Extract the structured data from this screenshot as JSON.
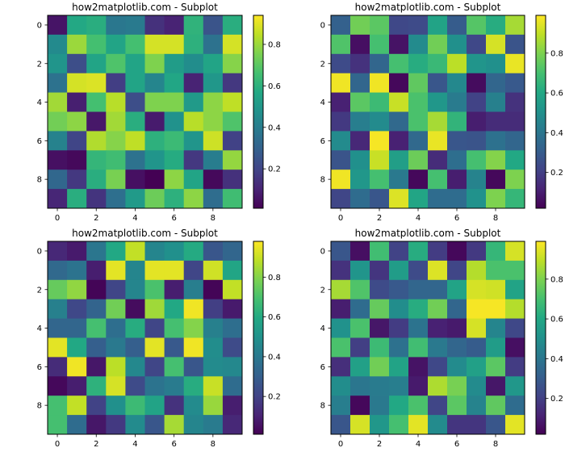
{
  "chart_data": [
    {
      "type": "heatmap",
      "title": "how2matplotlib.com - Subplot",
      "colormap": "viridis",
      "xticks": [
        "0",
        "2",
        "4",
        "6",
        "8"
      ],
      "yticks": [
        "0",
        "2",
        "4",
        "6",
        "8"
      ],
      "xlim": [
        -0.5,
        9.5
      ],
      "ylim": [
        9.5,
        -0.5
      ],
      "colorbar": {
        "range": [
          0.01,
          0.94
        ],
        "ticks": [
          "0.2",
          "0.4",
          "0.6",
          "0.8"
        ]
      },
      "values": [
        [
          0.06,
          0.57,
          0.59,
          0.38,
          0.39,
          0.14,
          0.1,
          0.61,
          0.25,
          0.59
        ],
        [
          0.45,
          0.8,
          0.66,
          0.55,
          0.66,
          0.88,
          0.88,
          0.6,
          0.36,
          0.88
        ],
        [
          0.49,
          0.23,
          0.55,
          0.68,
          0.55,
          0.76,
          0.52,
          0.46,
          0.55,
          0.77
        ],
        [
          0.36,
          0.88,
          0.89,
          0.18,
          0.55,
          0.43,
          0.56,
          0.1,
          0.5,
          0.16
        ],
        [
          0.81,
          0.09,
          0.66,
          0.84,
          0.23,
          0.76,
          0.76,
          0.51,
          0.78,
          0.85
        ],
        [
          0.74,
          0.78,
          0.07,
          0.81,
          0.59,
          0.08,
          0.48,
          0.84,
          0.78,
          0.68
        ],
        [
          0.42,
          0.2,
          0.83,
          0.77,
          0.85,
          0.6,
          0.64,
          0.49,
          0.87,
          0.19
        ],
        [
          0.05,
          0.03,
          0.62,
          0.65,
          0.36,
          0.49,
          0.58,
          0.16,
          0.4,
          0.79
        ],
        [
          0.32,
          0.16,
          0.59,
          0.75,
          0.05,
          0.01,
          0.78,
          0.55,
          0.03,
          0.14
        ],
        [
          0.11,
          0.59,
          0.15,
          0.35,
          0.51,
          0.73,
          0.6,
          0.78,
          0.34,
          0.65
        ]
      ]
    },
    {
      "type": "heatmap",
      "title": "how2matplotlib.com - Subplot",
      "colormap": "viridis",
      "xticks": [
        "0",
        "2",
        "4",
        "6",
        "8"
      ],
      "yticks": [
        "0",
        "2",
        "4",
        "6",
        "8"
      ],
      "xlim": [
        -0.5,
        9.5
      ],
      "ylim": [
        9.5,
        -0.5
      ],
      "colorbar": {
        "range": [
          0.02,
          0.99
        ],
        "ticks": [
          "0.2",
          "0.4",
          "0.6",
          "0.8"
        ]
      },
      "values": [
        [
          0.32,
          0.78,
          0.74,
          0.23,
          0.24,
          0.58,
          0.3,
          0.73,
          0.62,
          0.86
        ],
        [
          0.72,
          0.06,
          0.7,
          0.07,
          0.48,
          0.78,
          0.5,
          0.23,
          0.93,
          0.27
        ],
        [
          0.24,
          0.16,
          0.34,
          0.7,
          0.62,
          0.67,
          0.89,
          0.52,
          0.5,
          0.96
        ],
        [
          0.97,
          0.34,
          0.97,
          0.04,
          0.75,
          0.28,
          0.47,
          0.05,
          0.34,
          0.29
        ],
        [
          0.11,
          0.74,
          0.68,
          0.91,
          0.71,
          0.53,
          0.42,
          0.21,
          0.44,
          0.16
        ],
        [
          0.18,
          0.43,
          0.48,
          0.35,
          0.71,
          0.86,
          0.65,
          0.1,
          0.14,
          0.14
        ],
        [
          0.48,
          0.13,
          0.98,
          0.11,
          0.35,
          0.96,
          0.28,
          0.27,
          0.38,
          0.34
        ],
        [
          0.27,
          0.5,
          0.91,
          0.56,
          0.77,
          0.14,
          0.37,
          0.7,
          0.81,
          0.6
        ],
        [
          0.97,
          0.53,
          0.7,
          0.41,
          0.04,
          0.7,
          0.1,
          0.45,
          0.04,
          0.8
        ],
        [
          0.22,
          0.36,
          0.28,
          0.94,
          0.59,
          0.36,
          0.36,
          0.51,
          0.8,
          0.66
        ]
      ]
    },
    {
      "type": "heatmap",
      "title": "how2matplotlib.com - Subplot",
      "colormap": "viridis",
      "xticks": [
        "0",
        "2",
        "4",
        "6",
        "8"
      ],
      "yticks": [
        "0",
        "2",
        "4",
        "6",
        "8"
      ],
      "xlim": [
        -0.5,
        9.5
      ],
      "ylim": [
        9.5,
        -0.5
      ],
      "colorbar": {
        "range": [
          0.01,
          0.98
        ],
        "ticks": [
          "0.2",
          "0.4",
          "0.6",
          "0.8"
        ]
      },
      "values": [
        [
          0.12,
          0.08,
          0.39,
          0.59,
          0.89,
          0.45,
          0.49,
          0.6,
          0.27,
          0.33
        ],
        [
          0.34,
          0.38,
          0.09,
          0.94,
          0.45,
          0.94,
          0.94,
          0.21,
          0.91,
          0.58
        ],
        [
          0.75,
          0.82,
          0.02,
          0.21,
          0.45,
          0.7,
          0.09,
          0.42,
          0.02,
          0.89
        ],
        [
          0.43,
          0.22,
          0.32,
          0.77,
          0.04,
          0.84,
          0.59,
          0.96,
          0.19,
          0.08
        ],
        [
          0.33,
          0.33,
          0.69,
          0.36,
          0.61,
          0.21,
          0.69,
          0.8,
          0.43,
          0.36
        ],
        [
          0.94,
          0.59,
          0.3,
          0.4,
          0.3,
          0.94,
          0.28,
          0.96,
          0.48,
          0.23
        ],
        [
          0.13,
          0.96,
          0.07,
          0.88,
          0.46,
          0.21,
          0.69,
          0.27,
          0.47,
          0.46
        ],
        [
          0.03,
          0.09,
          0.63,
          0.92,
          0.23,
          0.38,
          0.41,
          0.61,
          0.9,
          0.35
        ],
        [
          0.69,
          0.89,
          0.2,
          0.49,
          0.67,
          0.57,
          0.15,
          0.47,
          0.83,
          0.09
        ],
        [
          0.69,
          0.35,
          0.07,
          0.17,
          0.47,
          0.27,
          0.85,
          0.45,
          0.41,
          0.12
        ]
      ]
    },
    {
      "type": "heatmap",
      "title": "how2matplotlib.com - Subplot",
      "colormap": "viridis",
      "xticks": [
        "0",
        "2",
        "4",
        "6",
        "8"
      ],
      "yticks": [
        "0",
        "2",
        "4",
        "6",
        "8"
      ],
      "xlim": [
        -0.5,
        9.5
      ],
      "ylim": [
        9.5,
        -0.5
      ],
      "colorbar": {
        "range": [
          0.02,
          0.99
        ],
        "ticks": [
          "0.2",
          "0.4",
          "0.6",
          "0.8"
        ]
      },
      "values": [
        [
          0.28,
          0.06,
          0.69,
          0.21,
          0.62,
          0.19,
          0.04,
          0.18,
          0.66,
          0.93
        ],
        [
          0.16,
          0.52,
          0.17,
          0.55,
          0.24,
          0.94,
          0.22,
          0.88,
          0.71,
          0.71
        ],
        [
          0.86,
          0.72,
          0.24,
          0.29,
          0.34,
          0.34,
          0.58,
          0.93,
          0.92,
          0.58
        ],
        [
          0.1,
          0.36,
          0.76,
          0.49,
          0.62,
          0.78,
          0.34,
          0.98,
          0.98,
          0.88
        ],
        [
          0.51,
          0.71,
          0.08,
          0.19,
          0.39,
          0.11,
          0.09,
          0.93,
          0.46,
          0.23
        ],
        [
          0.71,
          0.2,
          0.68,
          0.38,
          0.69,
          0.41,
          0.34,
          0.3,
          0.55,
          0.06
        ],
        [
          0.15,
          0.57,
          0.78,
          0.58,
          0.07,
          0.23,
          0.48,
          0.57,
          0.74,
          0.19
        ],
        [
          0.49,
          0.4,
          0.42,
          0.43,
          0.09,
          0.87,
          0.79,
          0.48,
          0.08,
          0.53
        ],
        [
          0.43,
          0.04,
          0.41,
          0.6,
          0.71,
          0.22,
          0.74,
          0.45,
          0.75,
          0.36
        ],
        [
          0.28,
          0.93,
          0.53,
          0.7,
          0.95,
          0.48,
          0.17,
          0.17,
          0.28,
          0.95
        ]
      ]
    }
  ]
}
